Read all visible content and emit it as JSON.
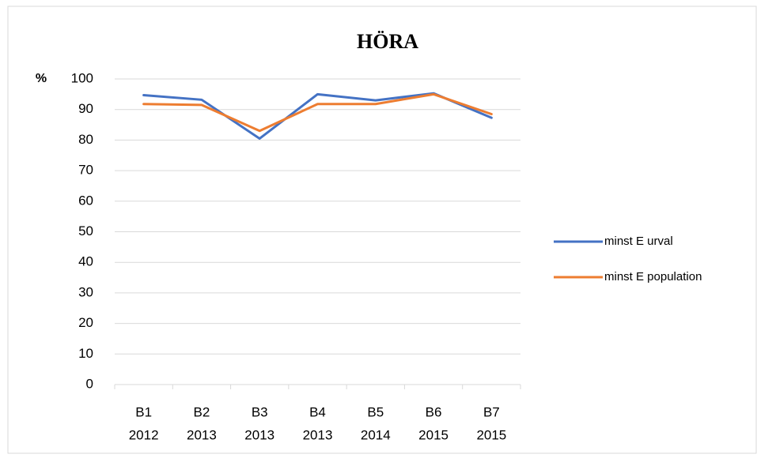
{
  "chart_data": {
    "type": "line",
    "title": "HÖRA",
    "y_label": "%",
    "categories": [
      [
        "B1",
        "2012"
      ],
      [
        "B2",
        "2013"
      ],
      [
        "B3",
        "2013"
      ],
      [
        "B4",
        "2013"
      ],
      [
        "B5",
        "2014"
      ],
      [
        "B6",
        "2015"
      ],
      [
        "B7",
        "2015"
      ]
    ],
    "series": [
      {
        "name": "minst E urval",
        "color": "#4472c4",
        "values": [
          94.7,
          93.2,
          80.5,
          95.0,
          93.0,
          95.3,
          87.3
        ]
      },
      {
        "name": "minst E population",
        "color": "#ed7d31",
        "values": [
          91.8,
          91.5,
          83.0,
          91.8,
          91.8,
          95.0,
          88.5
        ]
      }
    ],
    "ylim": [
      0,
      100
    ],
    "yticks": [
      0,
      10,
      20,
      30,
      40,
      50,
      60,
      70,
      80,
      90,
      100
    ],
    "grid": true,
    "legend": "right"
  }
}
